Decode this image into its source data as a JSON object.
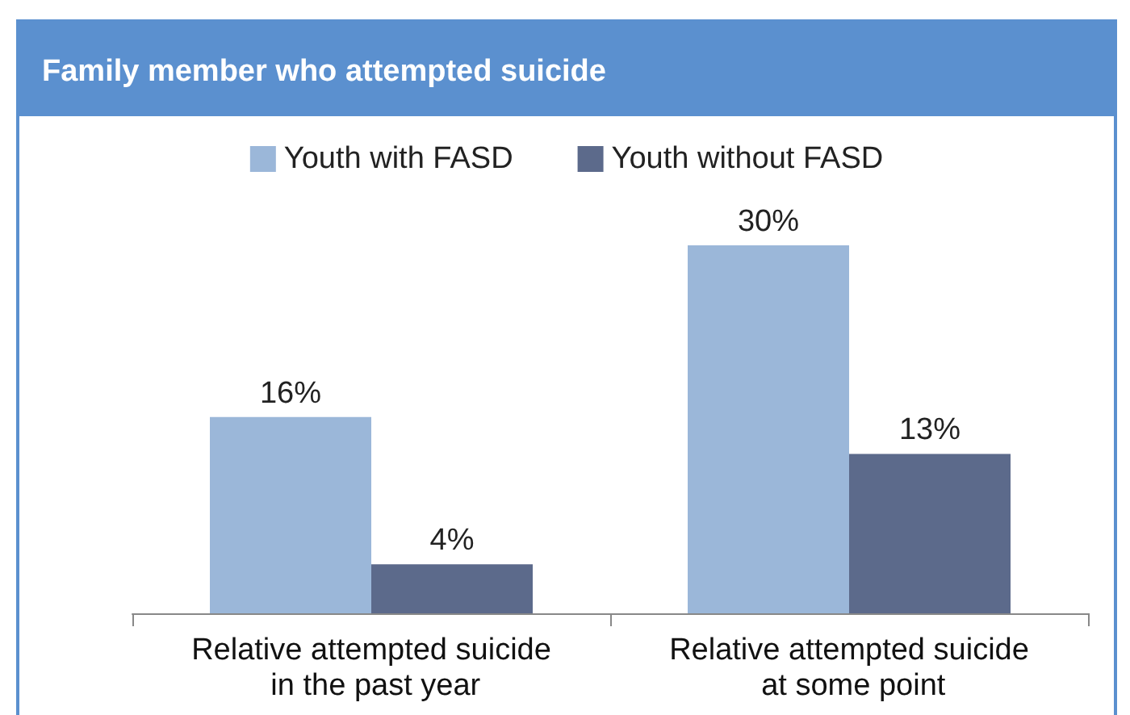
{
  "chart_data": {
    "type": "bar",
    "title": "Family member who attempted suicide",
    "categories": [
      "Relative attempted suicide in the past year",
      "Relative attempted suicide at some point"
    ],
    "series": [
      {
        "name": "Youth with FASD",
        "color": "#9bb7d9",
        "values": [
          16,
          30
        ],
        "value_labels": [
          "16%",
          "30%"
        ]
      },
      {
        "name": "Youth without FASD",
        "color": "#5c6a8b",
        "values": [
          4,
          13
        ],
        "value_labels": [
          "4%",
          "13%"
        ]
      }
    ],
    "legend": "top"
  }
}
